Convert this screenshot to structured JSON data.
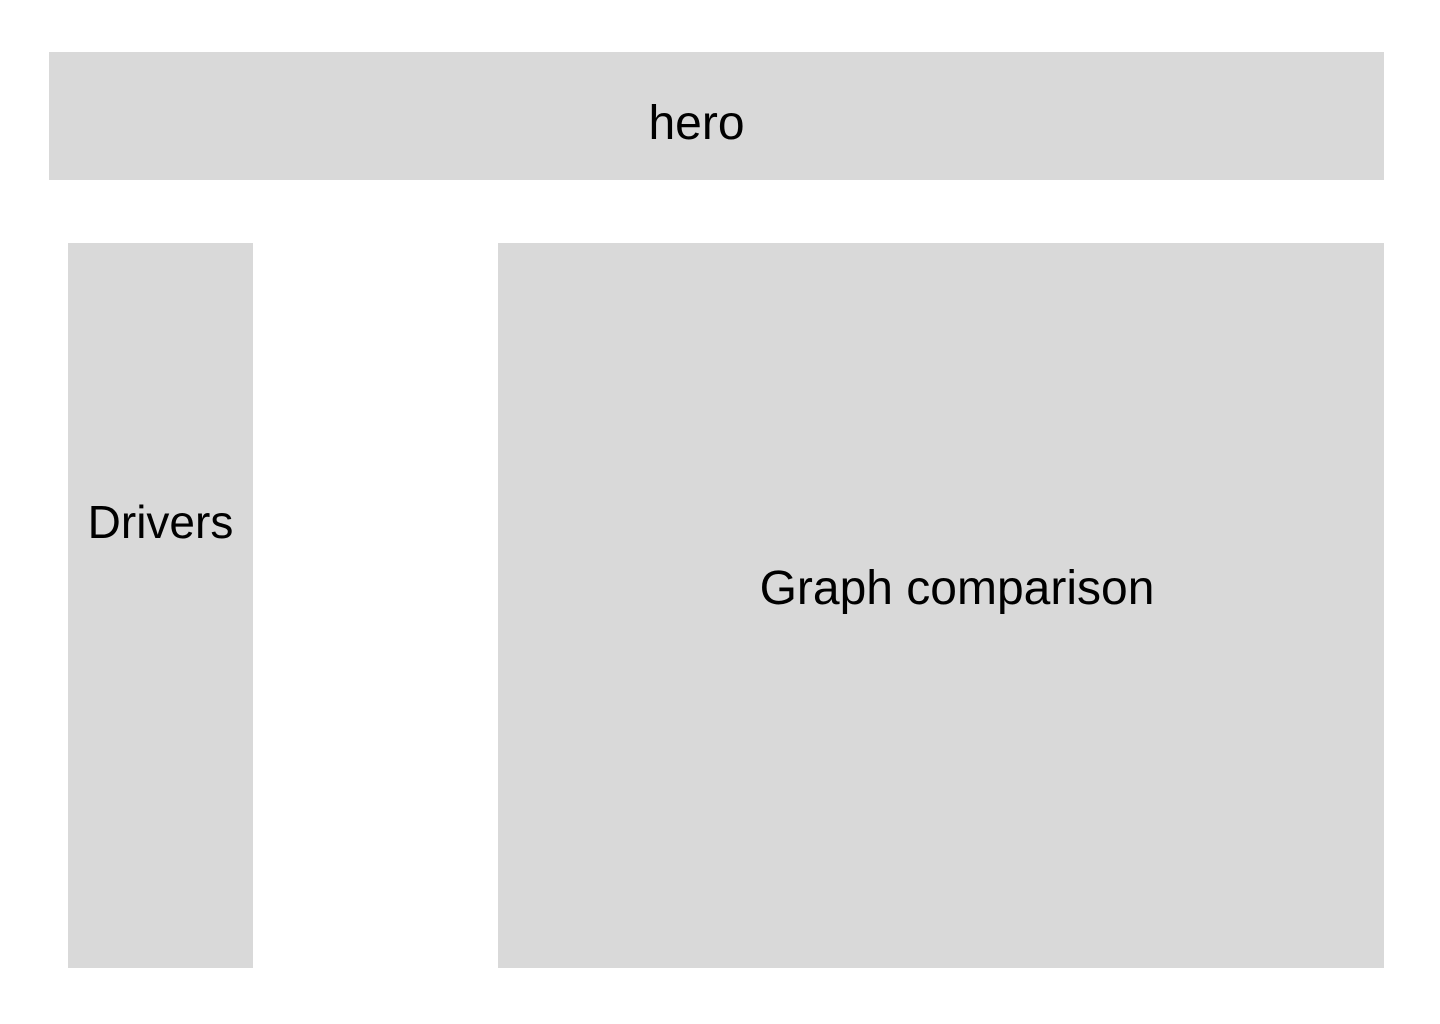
{
  "colors": {
    "background": "#ffffff",
    "block": "#d9d9d9",
    "text": "#000000"
  },
  "hero": {
    "label": "hero"
  },
  "drivers": {
    "label": "Drivers"
  },
  "graph_comparison": {
    "label": "Graph comparison"
  }
}
